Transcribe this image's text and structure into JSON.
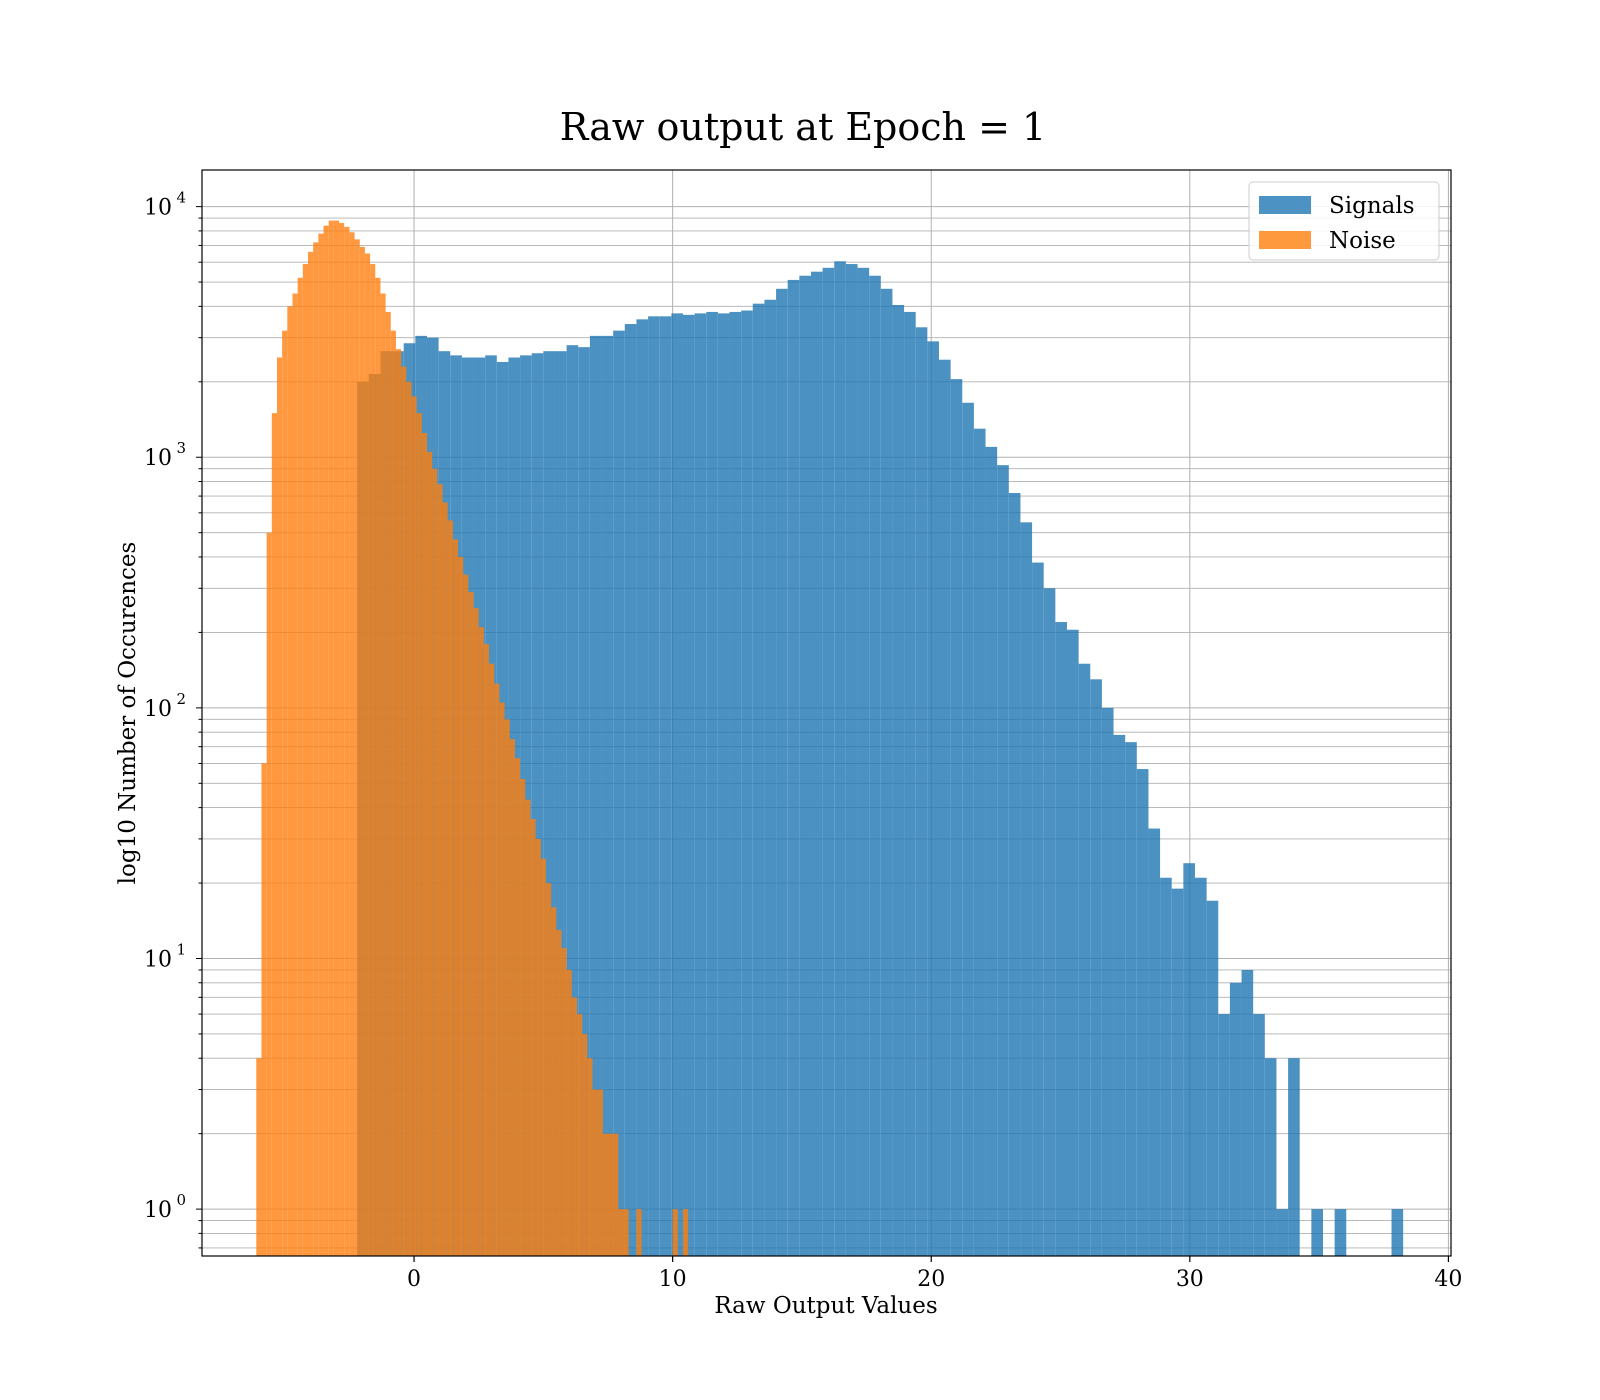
{
  "chart_data": {
    "type": "bar",
    "subtype": "overlapping-histogram",
    "title": "Raw output at Epoch = 1",
    "xlabel": "Raw Output Values",
    "ylabel": "log10 Number of Occurences",
    "xlim": [
      -8.2,
      40.1
    ],
    "ylim": [
      0.65,
      14000
    ],
    "y_scale": "log",
    "x_ticks": [
      0,
      10,
      20,
      30,
      40
    ],
    "y_ticks": [
      1,
      10,
      100,
      1000,
      10000
    ],
    "y_tick_labels": [
      {
        "base": "10",
        "exp": "0"
      },
      {
        "base": "10",
        "exp": "1"
      },
      {
        "base": "10",
        "exp": "2"
      },
      {
        "base": "10",
        "exp": "3"
      },
      {
        "base": "10",
        "exp": "4"
      }
    ],
    "grid": true,
    "legend_position": "top-right",
    "colors": {
      "Signals": "#1f77b4",
      "Noise": "#ff7f0e"
    },
    "series": [
      {
        "name": "Signals",
        "alpha": 0.8,
        "bins": [
          [
            -2.2,
            -1.75,
            2000
          ],
          [
            -1.75,
            -1.3,
            2150
          ],
          [
            -1.3,
            -0.85,
            2650
          ],
          [
            -0.85,
            -0.4,
            2650
          ],
          [
            -0.4,
            0.05,
            2850
          ],
          [
            0.05,
            0.5,
            3050
          ],
          [
            0.5,
            0.95,
            3000
          ],
          [
            0.95,
            1.4,
            2650
          ],
          [
            1.4,
            1.85,
            2550
          ],
          [
            1.85,
            2.3,
            2500
          ],
          [
            2.3,
            2.75,
            2500
          ],
          [
            2.75,
            3.2,
            2550
          ],
          [
            3.2,
            3.65,
            2400
          ],
          [
            3.65,
            4.1,
            2500
          ],
          [
            4.1,
            4.55,
            2550
          ],
          [
            4.55,
            5.0,
            2600
          ],
          [
            5.0,
            5.45,
            2650
          ],
          [
            5.45,
            5.9,
            2650
          ],
          [
            5.9,
            6.35,
            2800
          ],
          [
            6.35,
            6.8,
            2750
          ],
          [
            6.8,
            7.25,
            3050
          ],
          [
            7.25,
            7.7,
            3050
          ],
          [
            7.7,
            8.15,
            3200
          ],
          [
            8.15,
            8.6,
            3400
          ],
          [
            8.6,
            9.05,
            3550
          ],
          [
            9.05,
            9.5,
            3650
          ],
          [
            9.5,
            9.95,
            3650
          ],
          [
            9.95,
            10.4,
            3750
          ],
          [
            10.4,
            10.85,
            3700
          ],
          [
            10.85,
            11.3,
            3750
          ],
          [
            11.3,
            11.75,
            3800
          ],
          [
            11.75,
            12.2,
            3750
          ],
          [
            12.2,
            12.65,
            3800
          ],
          [
            12.65,
            13.1,
            3850
          ],
          [
            13.1,
            13.55,
            4100
          ],
          [
            13.55,
            14.0,
            4250
          ],
          [
            14.0,
            14.45,
            4700
          ],
          [
            14.45,
            14.9,
            5100
          ],
          [
            14.9,
            15.35,
            5300
          ],
          [
            15.35,
            15.8,
            5500
          ],
          [
            15.8,
            16.25,
            5700
          ],
          [
            16.25,
            16.7,
            6050
          ],
          [
            16.7,
            17.15,
            5900
          ],
          [
            17.15,
            17.6,
            5700
          ],
          [
            17.6,
            18.05,
            5300
          ],
          [
            18.05,
            18.5,
            4700
          ],
          [
            18.5,
            18.95,
            4050
          ],
          [
            18.95,
            19.4,
            3800
          ],
          [
            19.4,
            19.85,
            3300
          ],
          [
            19.85,
            20.3,
            2900
          ],
          [
            20.3,
            20.75,
            2450
          ],
          [
            20.75,
            21.2,
            2050
          ],
          [
            21.2,
            21.65,
            1650
          ],
          [
            21.65,
            22.1,
            1300
          ],
          [
            22.1,
            22.55,
            1100
          ],
          [
            22.55,
            23.0,
            930
          ],
          [
            23.0,
            23.45,
            720
          ],
          [
            23.45,
            23.9,
            550
          ],
          [
            23.9,
            24.35,
            380
          ],
          [
            24.35,
            24.8,
            300
          ],
          [
            24.8,
            25.25,
            220
          ],
          [
            25.25,
            25.7,
            205
          ],
          [
            25.7,
            26.15,
            150
          ],
          [
            26.15,
            26.6,
            130
          ],
          [
            26.6,
            27.05,
            100
          ],
          [
            27.05,
            27.5,
            78
          ],
          [
            27.5,
            27.95,
            73
          ],
          [
            27.95,
            28.4,
            57
          ],
          [
            28.4,
            28.85,
            33
          ],
          [
            28.85,
            29.3,
            21
          ],
          [
            29.3,
            29.75,
            19
          ],
          [
            29.75,
            30.2,
            24
          ],
          [
            30.2,
            30.65,
            21
          ],
          [
            30.65,
            31.1,
            17
          ],
          [
            31.1,
            31.55,
            6
          ],
          [
            31.55,
            32.0,
            8
          ],
          [
            32.0,
            32.45,
            9
          ],
          [
            32.45,
            32.9,
            6
          ],
          [
            32.9,
            33.35,
            4
          ],
          [
            33.35,
            33.8,
            1
          ],
          [
            33.8,
            34.25,
            4
          ],
          [
            34.7,
            35.15,
            1
          ],
          [
            35.6,
            36.05,
            1
          ],
          [
            37.8,
            38.25,
            1
          ]
        ]
      },
      {
        "name": "Noise",
        "alpha": 0.8,
        "bins": [
          [
            -6.1,
            -5.9,
            4
          ],
          [
            -5.9,
            -5.7,
            60
          ],
          [
            -5.7,
            -5.5,
            500
          ],
          [
            -5.5,
            -5.3,
            1500
          ],
          [
            -5.3,
            -5.1,
            2500
          ],
          [
            -5.1,
            -4.9,
            3200
          ],
          [
            -4.9,
            -4.7,
            4000
          ],
          [
            -4.7,
            -4.5,
            4500
          ],
          [
            -4.5,
            -4.3,
            5200
          ],
          [
            -4.3,
            -4.1,
            5900
          ],
          [
            -4.1,
            -3.9,
            6600
          ],
          [
            -3.9,
            -3.7,
            7200
          ],
          [
            -3.7,
            -3.5,
            7800
          ],
          [
            -3.5,
            -3.3,
            8400
          ],
          [
            -3.3,
            -3.1,
            8800
          ],
          [
            -3.1,
            -2.9,
            8800
          ],
          [
            -2.9,
            -2.7,
            8600
          ],
          [
            -2.7,
            -2.5,
            8300
          ],
          [
            -2.5,
            -2.3,
            7900
          ],
          [
            -2.3,
            -2.1,
            7400
          ],
          [
            -2.1,
            -1.9,
            6900
          ],
          [
            -1.9,
            -1.7,
            6500
          ],
          [
            -1.7,
            -1.5,
            5900
          ],
          [
            -1.5,
            -1.3,
            5200
          ],
          [
            -1.3,
            -1.1,
            4500
          ],
          [
            -1.1,
            -0.9,
            3800
          ],
          [
            -0.9,
            -0.7,
            3200
          ],
          [
            -0.7,
            -0.5,
            2700
          ],
          [
            -0.5,
            -0.3,
            2300
          ],
          [
            -0.3,
            -0.1,
            2000
          ],
          [
            -0.1,
            0.1,
            1750
          ],
          [
            0.1,
            0.3,
            1500
          ],
          [
            0.3,
            0.5,
            1250
          ],
          [
            0.5,
            0.7,
            1050
          ],
          [
            0.7,
            0.9,
            900
          ],
          [
            0.9,
            1.1,
            780
          ],
          [
            1.1,
            1.3,
            660
          ],
          [
            1.3,
            1.5,
            560
          ],
          [
            1.5,
            1.7,
            470
          ],
          [
            1.7,
            1.9,
            400
          ],
          [
            1.9,
            2.1,
            340
          ],
          [
            2.1,
            2.3,
            290
          ],
          [
            2.3,
            2.5,
            250
          ],
          [
            2.5,
            2.7,
            210
          ],
          [
            2.7,
            2.9,
            180
          ],
          [
            2.9,
            3.1,
            150
          ],
          [
            3.1,
            3.3,
            125
          ],
          [
            3.3,
            3.5,
            105
          ],
          [
            3.5,
            3.7,
            90
          ],
          [
            3.7,
            3.9,
            75
          ],
          [
            3.9,
            4.1,
            63
          ],
          [
            4.1,
            4.3,
            52
          ],
          [
            4.3,
            4.5,
            43
          ],
          [
            4.5,
            4.7,
            36
          ],
          [
            4.7,
            4.9,
            30
          ],
          [
            4.9,
            5.1,
            25
          ],
          [
            5.1,
            5.3,
            20
          ],
          [
            5.3,
            5.5,
            16
          ],
          [
            5.5,
            5.7,
            13
          ],
          [
            5.7,
            5.9,
            11
          ],
          [
            5.9,
            6.1,
            9
          ],
          [
            6.1,
            6.3,
            7
          ],
          [
            6.3,
            6.5,
            6
          ],
          [
            6.5,
            6.7,
            5
          ],
          [
            6.7,
            6.9,
            4
          ],
          [
            6.9,
            7.1,
            3
          ],
          [
            7.1,
            7.3,
            3
          ],
          [
            7.3,
            7.5,
            2
          ],
          [
            7.5,
            7.7,
            2
          ],
          [
            7.7,
            7.9,
            2
          ],
          [
            7.9,
            8.1,
            1
          ],
          [
            8.1,
            8.3,
            1
          ],
          [
            8.6,
            8.8,
            1
          ],
          [
            10.0,
            10.2,
            1
          ],
          [
            10.4,
            10.6,
            1
          ]
        ]
      }
    ]
  }
}
